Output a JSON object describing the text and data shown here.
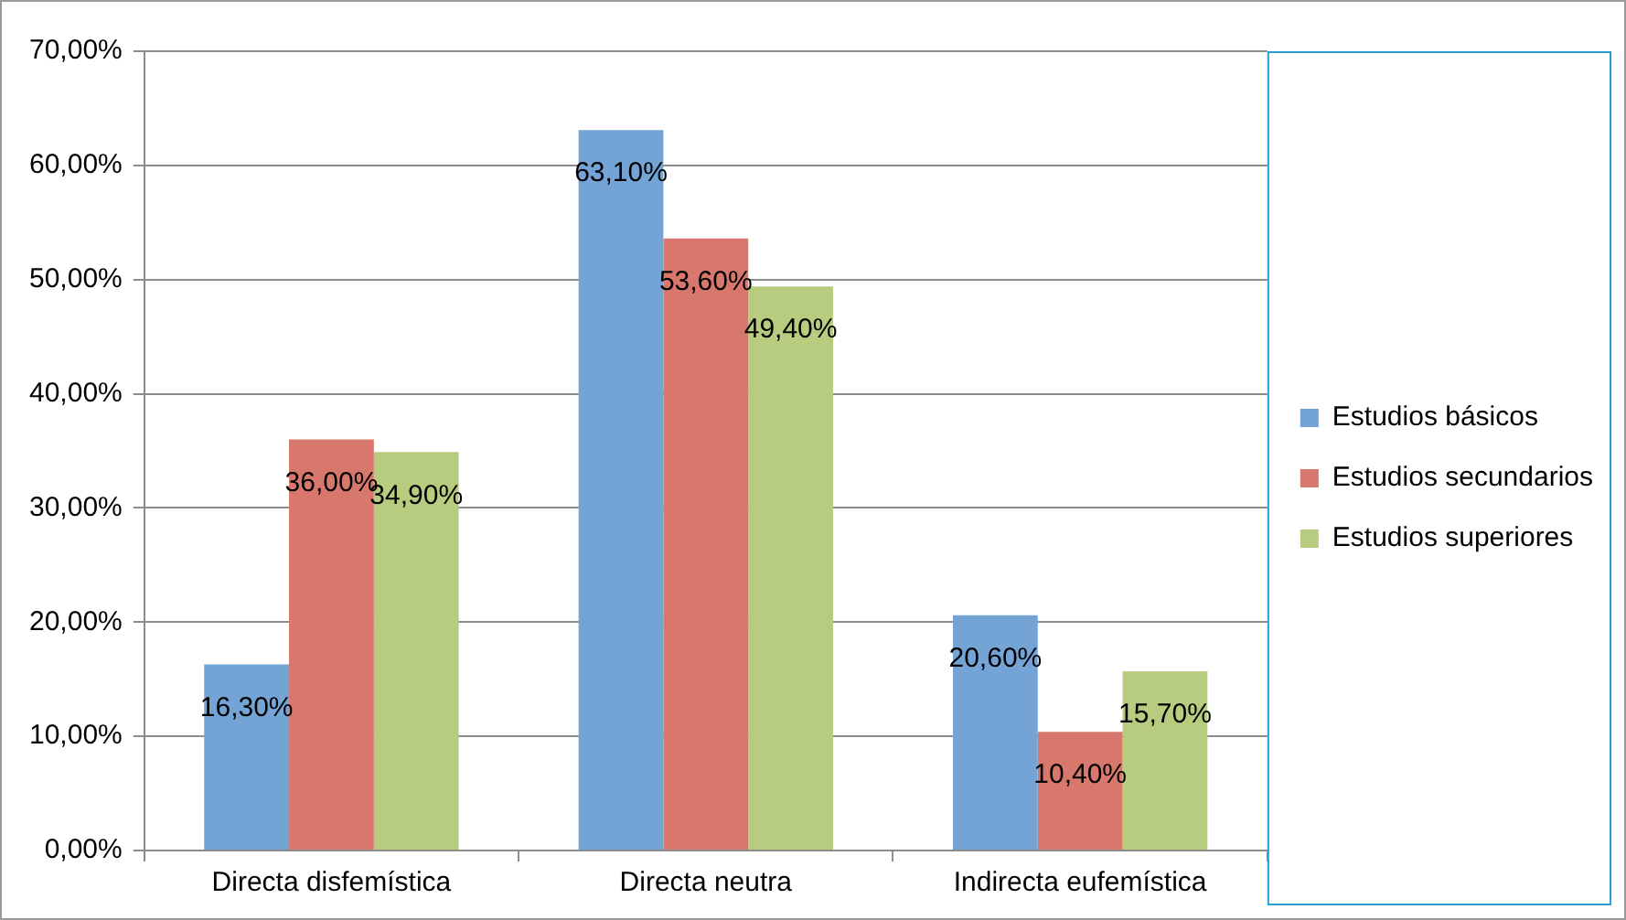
{
  "chart_data": {
    "type": "bar",
    "categories": [
      "Directa disfemística",
      "Directa neutra",
      "Indirecta eufemística"
    ],
    "series": [
      {
        "name": "Estudios básicos",
        "color": "#74a4d6",
        "values": [
          16.3,
          63.1,
          20.6
        ],
        "value_labels": [
          "16,30%",
          "63,10%",
          "20,60%"
        ]
      },
      {
        "name": "Estudios secundarios",
        "color": "#d8786d",
        "values": [
          36.0,
          53.6,
          10.4
        ],
        "value_labels": [
          "36,00%",
          "53,60%",
          "10,40%"
        ]
      },
      {
        "name": "Estudios superiores",
        "color": "#b7cc7f",
        "values": [
          34.9,
          49.4,
          15.7
        ],
        "value_labels": [
          "34,90%",
          "49,40%",
          "15,70%"
        ]
      }
    ],
    "ylim": [
      0,
      70
    ],
    "yticks": [
      {
        "value": 0,
        "label": "0,00%"
      },
      {
        "value": 10,
        "label": "10,00%"
      },
      {
        "value": 20,
        "label": "20,00%"
      },
      {
        "value": 30,
        "label": "30,00%"
      },
      {
        "value": 40,
        "label": "40,00%"
      },
      {
        "value": 50,
        "label": "50,00%"
      },
      {
        "value": 60,
        "label": "60,00%"
      },
      {
        "value": 70,
        "label": "70,00%"
      }
    ],
    "grid": "y",
    "legend": "right"
  }
}
